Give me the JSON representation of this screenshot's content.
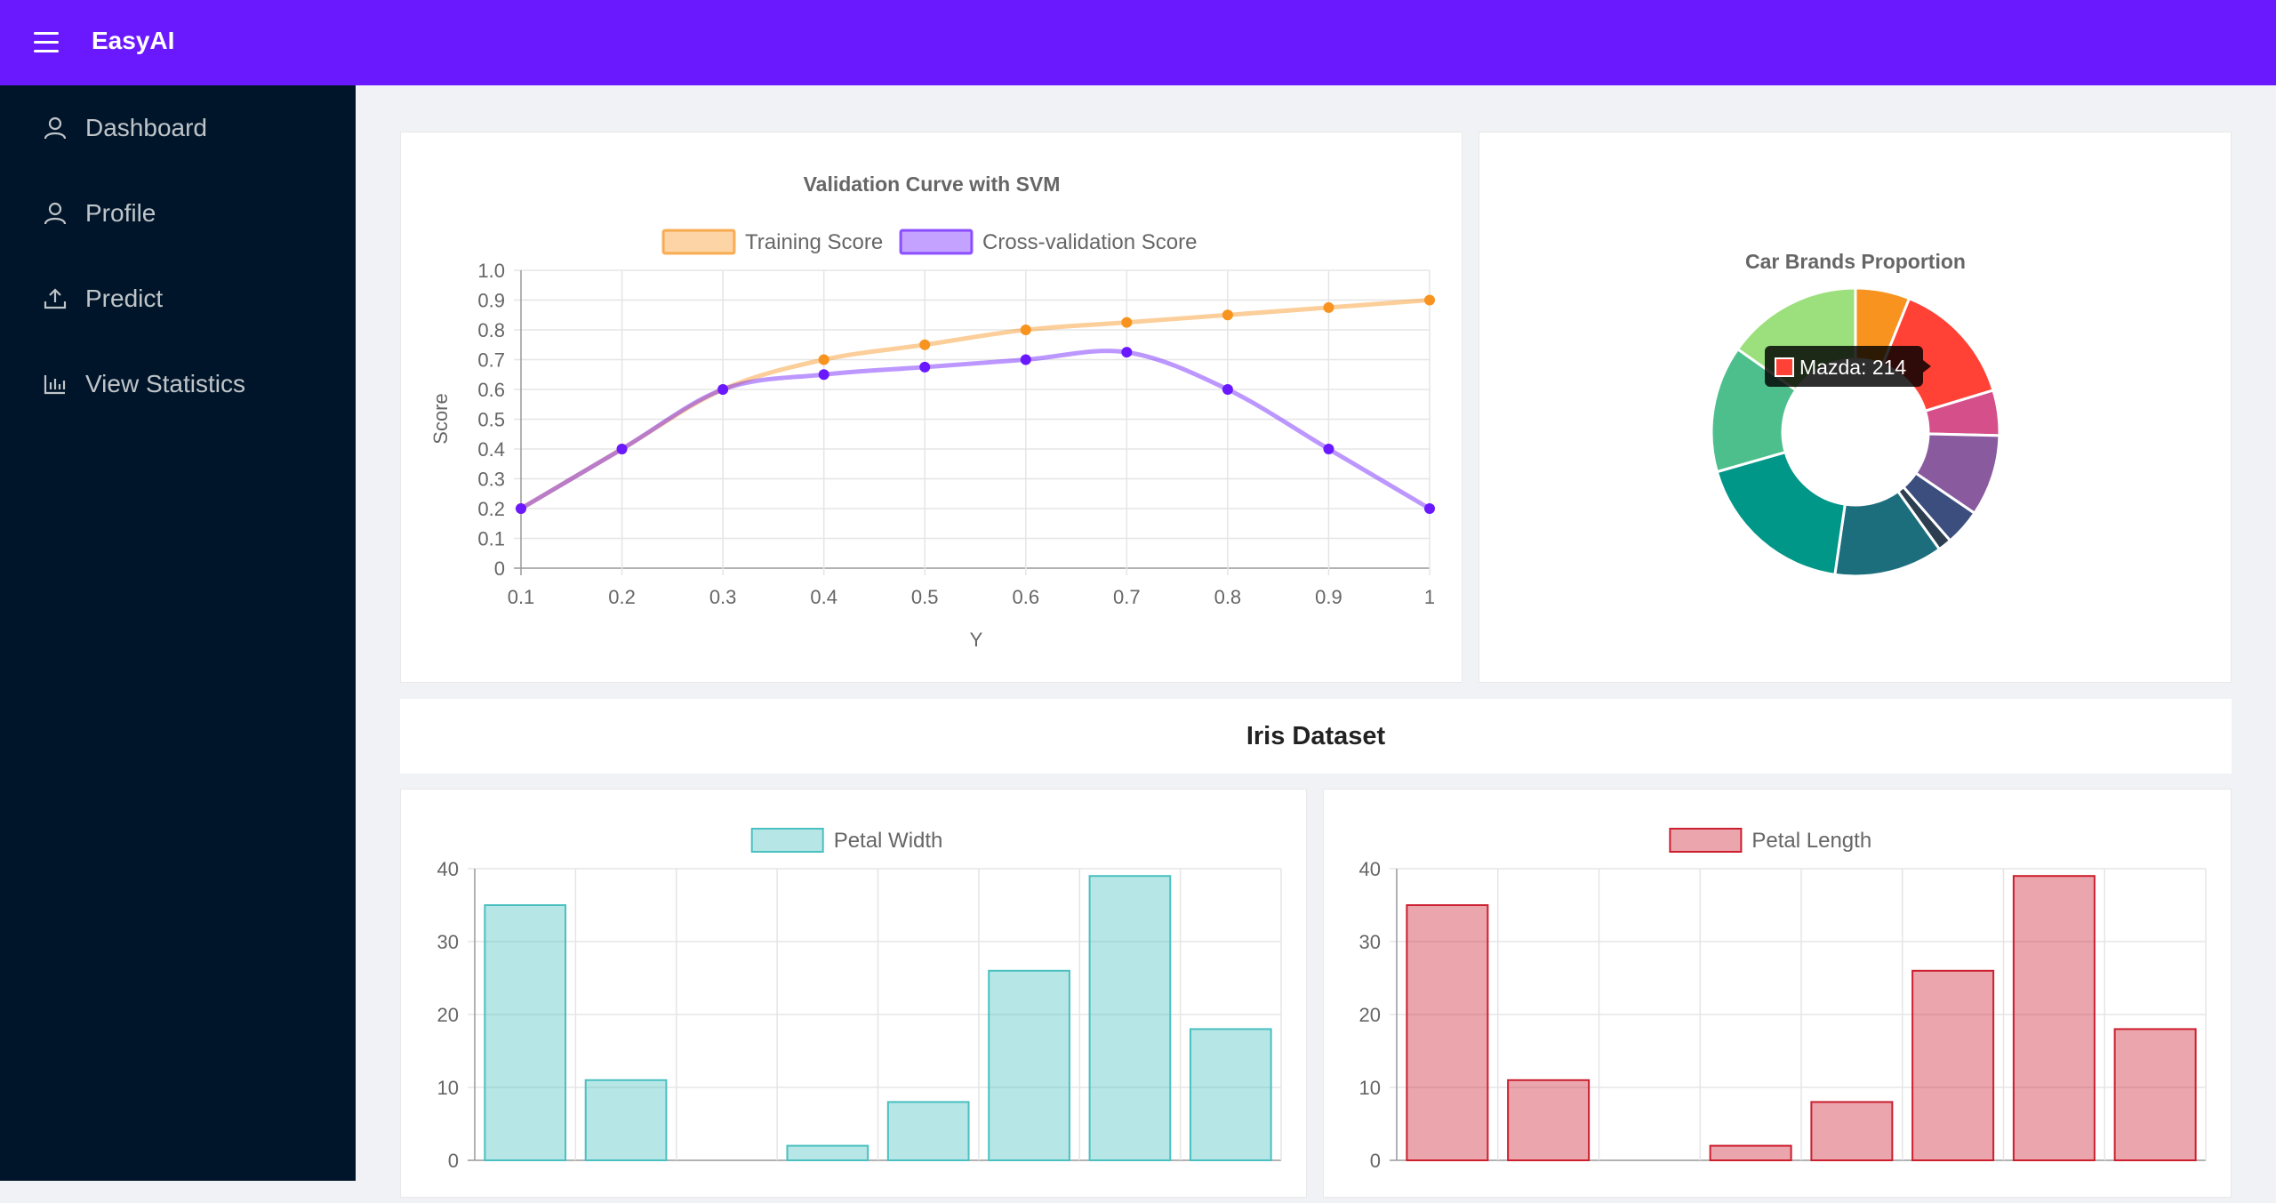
{
  "app": {
    "title": "EasyAI"
  },
  "sidebar": {
    "items": [
      {
        "label": "Dashboard",
        "icon": "user-icon"
      },
      {
        "label": "Profile",
        "icon": "user-icon"
      },
      {
        "label": "Predict",
        "icon": "upload-icon"
      },
      {
        "label": "View Statistics",
        "icon": "bar-chart-icon"
      }
    ]
  },
  "colors": {
    "accent": "#6a19ff",
    "sidebar": "#001529",
    "training": "#f7931e",
    "cv": "#6a19ff",
    "teal": "#4bc0c0",
    "red": "#cc1f2f"
  },
  "iris": {
    "title": "Iris Dataset"
  },
  "chart_data": [
    {
      "type": "line",
      "title": "Validation Curve with SVM",
      "xlabel": "Y",
      "ylabel": "Score",
      "x": [
        0.1,
        0.2,
        0.3,
        0.4,
        0.5,
        0.6,
        0.7,
        0.8,
        0.9,
        1
      ],
      "x_tick_labels": [
        "0.1",
        "0.2",
        "0.3",
        "0.4",
        "0.5",
        "0.6",
        "0.7",
        "0.8",
        "0.9",
        "1"
      ],
      "y_tick_labels": [
        "0",
        "0.1",
        "0.2",
        "0.3",
        "0.4",
        "0.5",
        "0.6",
        "0.7",
        "0.8",
        "0.9",
        "1.0"
      ],
      "ylim": [
        0,
        1
      ],
      "grid": true,
      "legend": "top",
      "series": [
        {
          "name": "Training Score",
          "color": "#f7931e",
          "values": [
            0.2,
            0.4,
            0.6,
            0.7,
            0.75,
            0.8,
            0.825,
            0.85,
            0.875,
            0.9
          ]
        },
        {
          "name": "Cross-validation Score",
          "color": "#6a19ff",
          "values": [
            0.2,
            0.4,
            0.6,
            0.65,
            0.675,
            0.7,
            0.725,
            0.6,
            0.4,
            0.2
          ]
        }
      ]
    },
    {
      "type": "pie",
      "title": "Car Brands Proportion",
      "tooltip": "Mazda: 214",
      "slices": [
        {
          "value": 6,
          "color": "#f7931e"
        },
        {
          "value": 14,
          "color": "#ff4136"
        },
        {
          "value": 5,
          "color": "#d5508b"
        },
        {
          "value": 9,
          "color": "#8a5a9f"
        },
        {
          "value": 4,
          "color": "#3c4e7e"
        },
        {
          "value": 1.5,
          "color": "#2c3e50"
        },
        {
          "value": 12,
          "color": "#1d6e7d"
        },
        {
          "value": 18,
          "color": "#009688"
        },
        {
          "value": 14,
          "color": "#4dbf8c"
        },
        {
          "value": 15,
          "color": "#9be07c"
        }
      ]
    },
    {
      "type": "bar",
      "series": [
        {
          "name": "Petal Width",
          "color": "#4bc0c0",
          "values": [
            35,
            11,
            0,
            2,
            8,
            26,
            39,
            18
          ]
        }
      ],
      "y_tick_labels": [
        "0",
        "10",
        "20",
        "30",
        "40"
      ],
      "ylim": [
        0,
        40
      ],
      "grid": true,
      "legend": "top"
    },
    {
      "type": "bar",
      "series": [
        {
          "name": "Petal Length",
          "color": "#cc1f2f",
          "values": [
            35,
            11,
            0,
            2,
            8,
            26,
            39,
            18
          ]
        }
      ],
      "y_tick_labels": [
        "0",
        "10",
        "20",
        "30",
        "40"
      ],
      "ylim": [
        0,
        40
      ],
      "grid": true,
      "legend": "top"
    }
  ]
}
